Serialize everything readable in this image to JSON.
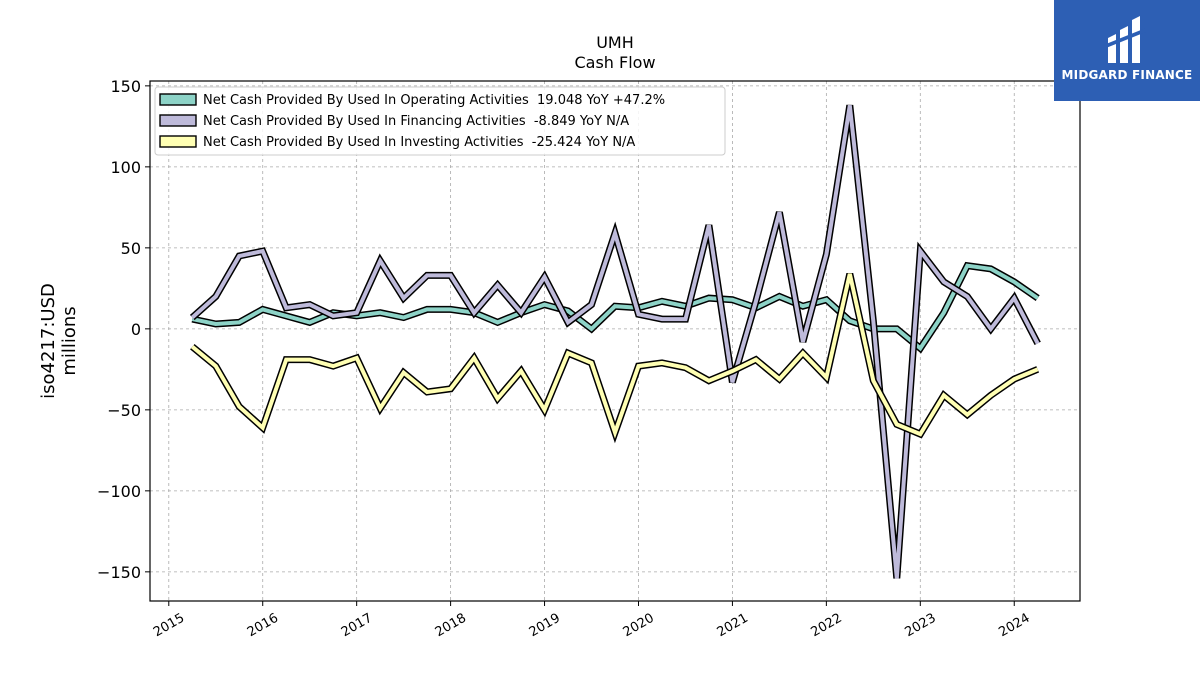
{
  "chart_data": {
    "type": "line",
    "title": "UMH",
    "subtitle": "Cash Flow",
    "ylabel_line1": "iso4217:USD",
    "ylabel_line2": "millions",
    "ylim": [
      -168,
      153
    ],
    "xlim": [
      2014.8,
      2024.7
    ],
    "yticks": [
      150,
      100,
      50,
      0,
      -50,
      -100,
      -150
    ],
    "ytick_labels": [
      "150",
      "100",
      "50",
      "0",
      "−50",
      "−100",
      "−150"
    ],
    "xticks": [
      2015,
      2016,
      2017,
      2018,
      2019,
      2020,
      2021,
      2022,
      2023,
      2024
    ],
    "xtick_labels": [
      "2015",
      "2016",
      "2017",
      "2018",
      "2019",
      "2020",
      "2021",
      "2022",
      "2023",
      "2024"
    ],
    "grid": true,
    "legend_position": "top-left",
    "x": [
      2015.25,
      2015.5,
      2015.75,
      2016.0,
      2016.25,
      2016.5,
      2016.75,
      2017.0,
      2017.25,
      2017.5,
      2017.75,
      2018.0,
      2018.25,
      2018.5,
      2018.75,
      2019.0,
      2019.25,
      2019.5,
      2019.75,
      2020.0,
      2020.25,
      2020.5,
      2020.75,
      2021.0,
      2021.25,
      2021.5,
      2021.75,
      2022.0,
      2022.25,
      2022.5,
      2022.75,
      2023.0,
      2023.25,
      2023.5,
      2023.75,
      2024.0,
      2024.25
    ],
    "series": [
      {
        "name": "Net Cash Provided By Used In Operating Activities  19.048 YoY +47.2%",
        "color": "#8dd3c7",
        "values": [
          6,
          3,
          4,
          12,
          8,
          4,
          10,
          8,
          10,
          7,
          12,
          12,
          10,
          4,
          10,
          15,
          11,
          0,
          14,
          13,
          17,
          14,
          19,
          18,
          13,
          20,
          14,
          18,
          5,
          0,
          0,
          -12,
          10,
          39,
          37,
          29,
          19
        ]
      },
      {
        "name": "Net Cash Provided By Used In Financing Activities  -8.849 YoY N/A",
        "color": "#bebada",
        "values": [
          7,
          20,
          45,
          48,
          13,
          15,
          8,
          10,
          42,
          19,
          33,
          33,
          10,
          27,
          10,
          32,
          4,
          15,
          59,
          9,
          6,
          6,
          64,
          -33,
          17,
          72,
          -8,
          46,
          138,
          5,
          -154,
          48,
          29,
          20,
          0,
          19,
          -9
        ]
      },
      {
        "name": "Net Cash Provided By Used In Investing Activities  -25.424 YoY N/A",
        "color": "#ffffb3",
        "values": [
          -11,
          -23,
          -48,
          -61,
          -19,
          -19,
          -23,
          -18,
          -49,
          -27,
          -39,
          -37,
          -18,
          -43,
          -26,
          -50,
          -15,
          -21,
          -64,
          -23,
          -21,
          -24,
          -32,
          -26,
          -19,
          -31,
          -15,
          -30,
          34,
          -32,
          -59,
          -65,
          -41,
          -53,
          -41,
          -31,
          -25
        ]
      }
    ]
  },
  "logo": {
    "text": "MIDGARD FINANCE"
  }
}
